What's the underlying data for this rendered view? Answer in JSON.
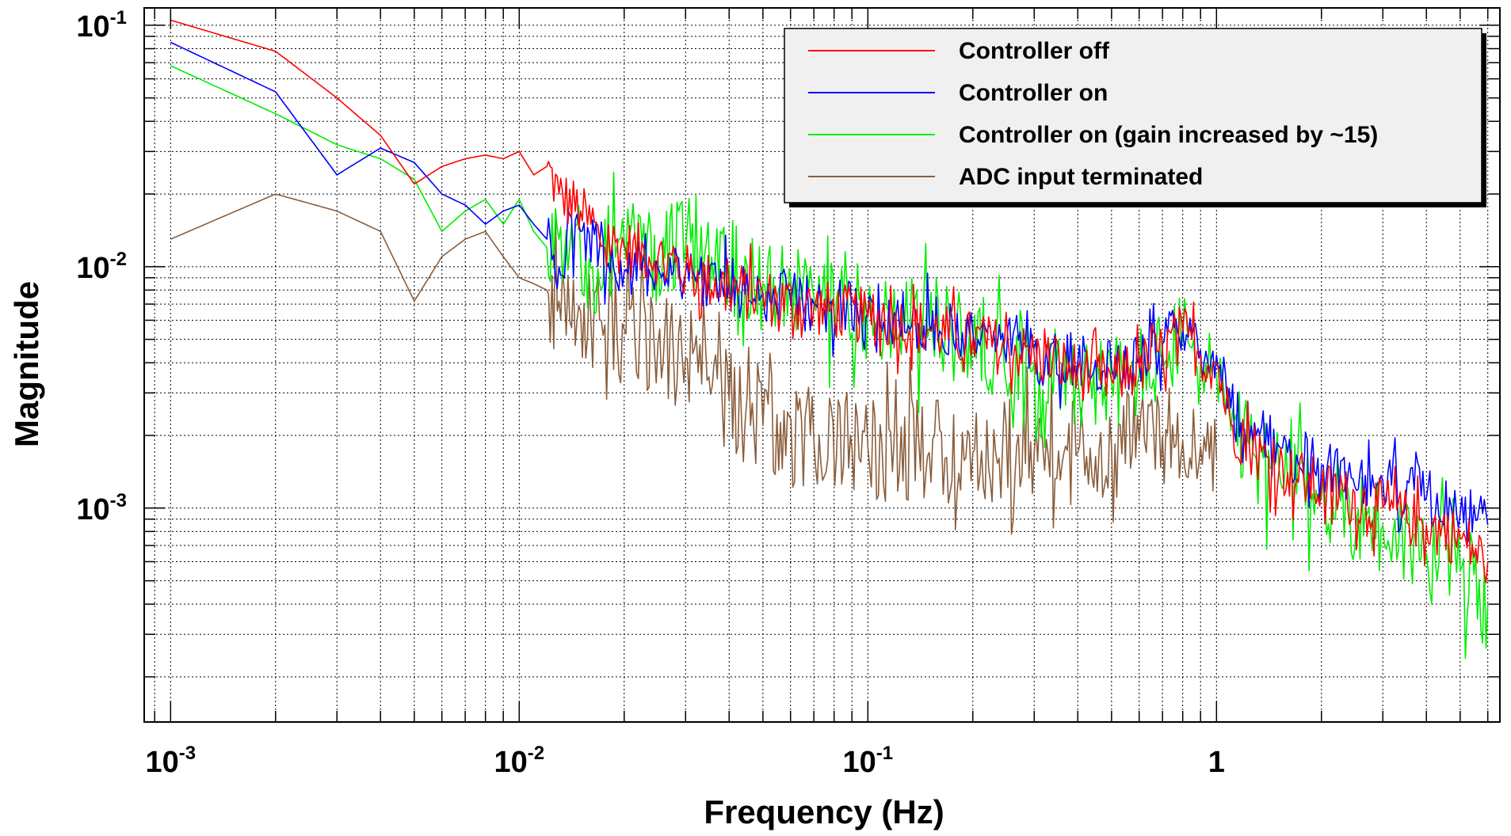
{
  "chart_data": {
    "type": "line",
    "xlabel": "Frequency (Hz)",
    "ylabel": "Magnitude",
    "xscale": "log",
    "yscale": "log",
    "xlim": [
      0.00084,
      6.5
    ],
    "ylim": [
      0.00013,
      0.118
    ],
    "grid": true,
    "legend_position": "top-right",
    "x_ticks": [
      {
        "value": 0.001,
        "base": "10",
        "exp": "-3"
      },
      {
        "value": 0.01,
        "base": "10",
        "exp": "-2"
      },
      {
        "value": 0.1,
        "base": "10",
        "exp": "-1"
      },
      {
        "value": 1,
        "base": "1",
        "exp": ""
      }
    ],
    "y_ticks": [
      {
        "value": 0.1,
        "base": "10",
        "exp": "-1"
      },
      {
        "value": 0.01,
        "base": "10",
        "exp": "-2"
      },
      {
        "value": 0.001,
        "base": "10",
        "exp": "-3"
      }
    ],
    "series": [
      {
        "name": "Controller off",
        "color": "#ff0000",
        "x": [
          0.001,
          0.002,
          0.003,
          0.004,
          0.005,
          0.006,
          0.007,
          0.008,
          0.009,
          0.01,
          0.011,
          0.012,
          0.013,
          0.015,
          0.017,
          0.02,
          0.025,
          0.03,
          0.04,
          0.05,
          0.07,
          0.1,
          0.15,
          0.2,
          0.3,
          0.4,
          0.5,
          0.6,
          0.7,
          0.8,
          0.85,
          0.9,
          1.0,
          1.1,
          1.3,
          1.6,
          2.0,
          3.0,
          4.0,
          5.0,
          6.0
        ],
        "y": [
          0.105,
          0.078,
          0.05,
          0.035,
          0.022,
          0.026,
          0.028,
          0.029,
          0.028,
          0.03,
          0.024,
          0.026,
          0.02,
          0.017,
          0.013,
          0.012,
          0.011,
          0.0095,
          0.0082,
          0.0075,
          0.0068,
          0.0062,
          0.0055,
          0.005,
          0.0043,
          0.0037,
          0.0034,
          0.0038,
          0.0045,
          0.0054,
          0.005,
          0.0042,
          0.004,
          0.0022,
          0.0017,
          0.0014,
          0.0012,
          0.001,
          0.00085,
          0.00075,
          0.0006
        ]
      },
      {
        "name": "Controller on",
        "color": "#0000ff",
        "x": [
          0.001,
          0.002,
          0.003,
          0.004,
          0.005,
          0.006,
          0.007,
          0.008,
          0.009,
          0.01,
          0.011,
          0.012,
          0.013,
          0.015,
          0.017,
          0.02,
          0.025,
          0.03,
          0.04,
          0.05,
          0.07,
          0.1,
          0.15,
          0.2,
          0.3,
          0.4,
          0.5,
          0.6,
          0.7,
          0.8,
          0.85,
          0.9,
          1.0,
          1.1,
          1.3,
          1.6,
          2.0,
          3.0,
          4.0,
          5.0,
          6.0
        ],
        "y": [
          0.085,
          0.053,
          0.024,
          0.031,
          0.027,
          0.02,
          0.018,
          0.015,
          0.017,
          0.018,
          0.015,
          0.013,
          0.01,
          0.014,
          0.012,
          0.0095,
          0.01,
          0.0095,
          0.0085,
          0.0078,
          0.007,
          0.0065,
          0.0058,
          0.0053,
          0.0046,
          0.004,
          0.0038,
          0.0042,
          0.0048,
          0.0056,
          0.0052,
          0.0045,
          0.0043,
          0.0026,
          0.002,
          0.0017,
          0.0015,
          0.0013,
          0.0011,
          0.00095,
          0.00085
        ]
      },
      {
        "name": "Controller on (gain increased by ~15)",
        "color": "#00ee00",
        "x": [
          0.001,
          0.002,
          0.003,
          0.004,
          0.005,
          0.006,
          0.007,
          0.008,
          0.009,
          0.01,
          0.011,
          0.012,
          0.013,
          0.015,
          0.017,
          0.02,
          0.025,
          0.03,
          0.04,
          0.05,
          0.07,
          0.1,
          0.15,
          0.2,
          0.3,
          0.4,
          0.5,
          0.6,
          0.7,
          0.8,
          0.85,
          0.9,
          1.0,
          1.1,
          1.3,
          1.6,
          2.0,
          3.0,
          4.0,
          5.0,
          6.0
        ],
        "y": [
          0.068,
          0.043,
          0.032,
          0.028,
          0.023,
          0.014,
          0.017,
          0.019,
          0.015,
          0.019,
          0.014,
          0.012,
          0.013,
          0.011,
          0.0085,
          0.013,
          0.011,
          0.012,
          0.01,
          0.0085,
          0.0075,
          0.0065,
          0.0055,
          0.005,
          0.004,
          0.0035,
          0.0033,
          0.0036,
          0.0042,
          0.005,
          0.0046,
          0.004,
          0.0036,
          0.0021,
          0.0016,
          0.0013,
          0.0011,
          0.00085,
          0.00065,
          0.00055,
          0.0004
        ]
      },
      {
        "name": "ADC input terminated",
        "color": "#8b5e3c",
        "x": [
          0.001,
          0.002,
          0.003,
          0.004,
          0.005,
          0.006,
          0.007,
          0.008,
          0.009,
          0.01,
          0.011,
          0.012,
          0.013,
          0.015,
          0.017,
          0.02,
          0.025,
          0.03,
          0.035,
          0.04,
          0.05,
          0.07,
          0.1,
          0.15,
          0.2,
          0.3,
          0.4,
          0.5,
          0.6,
          0.7,
          0.8,
          0.9,
          1.0
        ],
        "y": [
          0.013,
          0.02,
          0.017,
          0.014,
          0.0072,
          0.011,
          0.013,
          0.014,
          0.011,
          0.009,
          0.0085,
          0.008,
          0.0072,
          0.0065,
          0.006,
          0.0055,
          0.0048,
          0.0042,
          0.0035,
          0.0028,
          0.0022,
          0.0019,
          0.0018,
          0.0017,
          0.0017,
          0.0017,
          0.0017,
          0.0018,
          0.0019,
          0.002,
          0.0019,
          0.0018,
          0.0016
        ]
      }
    ]
  }
}
